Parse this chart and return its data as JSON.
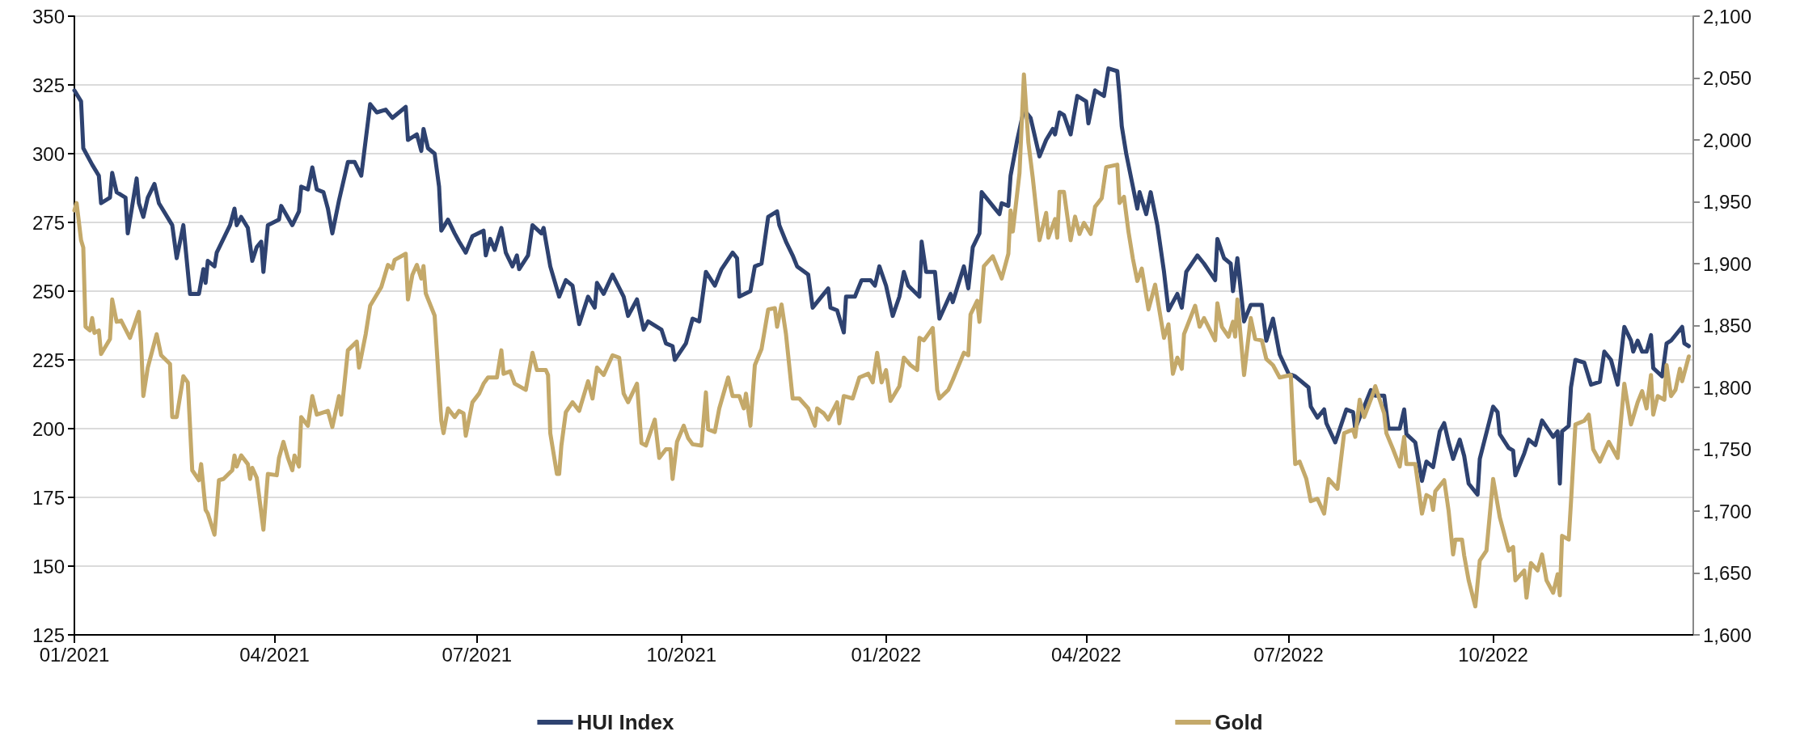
{
  "chart_data": {
    "type": "line",
    "xlim": [
      "2021-01-01",
      "2022-12-30"
    ],
    "xticks": [
      {
        "value": "2021-01-01",
        "label": "01/2021"
      },
      {
        "value": "2021-04-01",
        "label": "04/2021"
      },
      {
        "value": "2021-07-01",
        "label": "07/2021"
      },
      {
        "value": "2021-10-01",
        "label": "10/2021"
      },
      {
        "value": "2022-01-01",
        "label": "01/2022"
      },
      {
        "value": "2022-04-01",
        "label": "04/2022"
      },
      {
        "value": "2022-07-01",
        "label": "07/2022"
      },
      {
        "value": "2022-10-01",
        "label": "10/2022"
      }
    ],
    "ylim": [
      125,
      350
    ],
    "yticks": [
      125,
      150,
      175,
      200,
      225,
      250,
      275,
      300,
      325,
      350
    ],
    "y2lim": [
      1600,
      2100
    ],
    "y2ticks": [
      {
        "value": 1600,
        "label": "1,600"
      },
      {
        "value": 1650,
        "label": "1,650"
      },
      {
        "value": 1700,
        "label": "1,700"
      },
      {
        "value": 1750,
        "label": "1,750"
      },
      {
        "value": 1800,
        "label": "1,800"
      },
      {
        "value": 1850,
        "label": "1,850"
      },
      {
        "value": 1900,
        "label": "1,900"
      },
      {
        "value": 1950,
        "label": "1,950"
      },
      {
        "value": 2000,
        "label": "2,000"
      },
      {
        "value": 2050,
        "label": "2,050"
      },
      {
        "value": 2100,
        "label": "2,100"
      }
    ],
    "grid": "y",
    "legend": "bottom",
    "marker": "none",
    "line_style": "solid",
    "series": [
      {
        "name": "HUI Index",
        "color": "#2e4270",
        "axis": "y",
        "x": [
          "2021-01-01",
          "2021-01-04",
          "2021-01-05",
          "2021-01-09",
          "2021-01-12",
          "2021-01-13",
          "2021-01-17",
          "2021-01-18",
          "2021-01-20",
          "2021-01-24",
          "2021-01-25",
          "2021-01-29",
          "2021-01-30",
          "2021-02-01",
          "2021-02-03",
          "2021-02-06",
          "2021-02-08",
          "2021-02-14",
          "2021-02-16",
          "2021-02-19",
          "2021-02-22",
          "2021-02-26",
          "2021-02-28",
          "2021-03-01",
          "2021-03-02",
          "2021-03-05",
          "2021-03-06",
          "2021-03-09",
          "2021-03-12",
          "2021-03-14",
          "2021-03-15",
          "2021-03-17",
          "2021-03-20",
          "2021-03-22",
          "2021-03-24",
          "2021-03-26",
          "2021-03-27",
          "2021-03-29",
          "2021-04-03",
          "2021-04-04",
          "2021-04-09",
          "2021-04-12",
          "2021-04-13",
          "2021-04-16",
          "2021-04-18",
          "2021-04-20",
          "2021-04-23",
          "2021-04-25",
          "2021-04-27",
          "2021-04-30",
          "2021-05-04",
          "2021-05-07",
          "2021-05-10",
          "2021-05-14",
          "2021-05-17",
          "2021-05-21",
          "2021-05-24",
          "2021-05-30",
          "2021-05-31",
          "2021-06-04",
          "2021-06-06",
          "2021-06-07",
          "2021-06-09",
          "2021-06-12",
          "2021-06-14",
          "2021-06-15",
          "2021-06-18",
          "2021-06-21",
          "2021-06-23",
          "2021-06-26",
          "2021-06-29",
          "2021-07-04",
          "2021-07-05",
          "2021-07-07",
          "2021-07-09",
          "2021-07-12",
          "2021-07-14",
          "2021-07-17",
          "2021-07-19",
          "2021-07-20",
          "2021-07-24",
          "2021-07-26",
          "2021-07-30",
          "2021-07-31",
          "2021-08-03",
          "2021-08-07",
          "2021-08-10",
          "2021-08-13",
          "2021-08-16",
          "2021-08-20",
          "2021-08-23",
          "2021-08-24",
          "2021-08-27",
          "2021-08-31",
          "2021-09-05",
          "2021-09-07",
          "2021-09-11",
          "2021-09-14",
          "2021-09-16",
          "2021-09-22",
          "2021-09-24",
          "2021-09-27",
          "2021-09-28",
          "2021-10-03",
          "2021-10-06",
          "2021-10-09",
          "2021-10-12",
          "2021-10-16",
          "2021-10-19",
          "2021-10-24",
          "2021-10-26",
          "2021-10-27",
          "2021-11-01",
          "2021-11-03",
          "2021-11-06",
          "2021-11-09",
          "2021-11-13",
          "2021-11-14",
          "2021-11-17",
          "2021-11-20",
          "2021-11-22",
          "2021-11-27",
          "2021-11-29",
          "2021-12-06",
          "2021-12-07",
          "2021-12-10",
          "2021-12-13",
          "2021-12-14",
          "2021-12-18",
          "2021-12-21",
          "2021-12-25",
          "2021-12-27",
          "2021-12-29",
          "2022-01-01",
          "2022-01-04",
          "2022-01-07",
          "2022-01-09",
          "2022-01-11",
          "2022-01-16",
          "2022-01-17",
          "2022-01-19",
          "2022-01-23",
          "2022-01-25",
          "2022-01-30",
          "2022-01-31",
          "2022-02-05",
          "2022-02-07",
          "2022-02-09",
          "2022-02-12",
          "2022-02-13",
          "2022-02-18",
          "2022-02-21",
          "2022-02-22",
          "2022-02-25",
          "2022-02-26",
          "2022-03-01",
          "2022-03-04",
          "2022-03-07",
          "2022-03-11",
          "2022-03-14",
          "2022-03-17",
          "2022-03-18",
          "2022-03-20",
          "2022-03-22",
          "2022-03-25",
          "2022-03-28",
          "2022-04-01",
          "2022-04-02",
          "2022-04-05",
          "2022-04-09",
          "2022-04-11",
          "2022-04-15",
          "2022-04-16",
          "2022-04-17",
          "2022-04-19",
          "2022-04-22",
          "2022-04-24",
          "2022-04-25",
          "2022-04-28",
          "2022-04-30",
          "2022-05-03",
          "2022-05-06",
          "2022-05-08",
          "2022-05-12",
          "2022-05-14",
          "2022-05-16",
          "2022-05-21",
          "2022-05-24",
          "2022-05-29",
          "2022-05-30",
          "2022-06-02",
          "2022-06-05",
          "2022-06-06",
          "2022-06-08",
          "2022-06-11",
          "2022-06-14",
          "2022-06-19",
          "2022-06-21",
          "2022-06-24",
          "2022-06-27",
          "2022-07-01",
          "2022-07-04",
          "2022-07-10",
          "2022-07-11",
          "2022-07-14",
          "2022-07-17",
          "2022-07-18",
          "2022-07-22",
          "2022-07-27",
          "2022-07-30",
          "2022-07-31",
          "2022-08-02",
          "2022-08-07",
          "2022-08-09",
          "2022-08-13",
          "2022-08-15",
          "2022-08-17",
          "2022-08-20",
          "2022-08-22",
          "2022-08-23",
          "2022-08-27",
          "2022-08-30",
          "2022-09-01",
          "2022-09-04",
          "2022-09-07",
          "2022-09-09",
          "2022-09-11",
          "2022-09-13",
          "2022-09-16",
          "2022-09-18",
          "2022-09-20",
          "2022-09-24",
          "2022-09-25",
          "2022-10-01",
          "2022-10-03",
          "2022-10-04",
          "2022-10-08",
          "2022-10-10",
          "2022-10-11",
          "2022-10-15",
          "2022-10-17",
          "2022-10-20",
          "2022-10-23",
          "2022-10-28",
          "2022-10-30",
          "2022-10-31",
          "2022-11-01",
          "2022-11-04",
          "2022-11-05",
          "2022-11-07",
          "2022-11-11",
          "2022-11-14",
          "2022-11-18",
          "2022-11-20",
          "2022-11-23",
          "2022-11-26",
          "2022-11-29",
          "2022-12-02",
          "2022-12-03",
          "2022-12-05",
          "2022-12-07",
          "2022-12-09",
          "2022-12-11",
          "2022-12-12",
          "2022-12-16",
          "2022-12-18",
          "2022-12-20",
          "2022-12-25",
          "2022-12-26",
          "2022-12-28"
        ],
        "values": [
          323,
          319,
          302,
          296,
          292,
          282,
          284,
          293,
          286,
          284,
          271,
          291,
          282,
          277,
          284,
          289,
          282,
          274,
          262,
          274,
          249,
          249,
          258,
          253,
          261,
          259,
          264,
          269,
          274,
          280,
          274,
          277,
          273,
          261,
          266,
          268,
          257,
          274,
          276,
          281,
          274,
          279,
          288,
          287,
          295,
          287,
          286,
          280,
          271,
          283,
          297,
          297,
          292,
          318,
          315,
          316,
          313,
          317,
          305,
          307,
          301,
          309,
          302,
          300,
          288,
          272,
          276,
          271,
          268,
          264,
          270,
          272,
          263,
          269,
          265,
          273,
          264,
          259,
          263,
          258,
          263,
          274,
          271,
          273,
          259,
          248,
          254,
          252,
          238,
          248,
          244,
          253,
          249,
          256,
          248,
          241,
          247,
          236,
          239,
          236,
          231,
          230,
          225,
          231,
          240,
          239,
          257,
          252,
          258,
          264,
          262,
          248,
          250,
          259,
          260,
          277,
          279,
          274,
          268,
          263,
          259,
          256,
          244,
          251,
          244,
          243,
          235,
          248,
          248,
          254,
          254,
          252,
          259,
          252,
          241,
          248,
          257,
          252,
          248,
          268,
          257,
          257,
          240,
          249,
          246,
          259,
          251,
          266,
          271,
          286,
          281,
          278,
          282,
          281,
          292,
          305,
          316,
          313,
          299,
          305,
          309,
          307,
          315,
          314,
          307,
          321,
          319,
          311,
          323,
          321,
          331,
          330,
          321,
          310,
          300,
          288,
          280,
          286,
          278,
          286,
          274,
          257,
          243,
          249,
          244,
          257,
          263,
          260,
          254,
          269,
          262,
          260,
          250,
          262,
          239,
          245,
          245,
          232,
          240,
          227,
          220,
          219,
          215,
          208,
          204,
          207,
          202,
          195,
          207,
          206,
          200,
          204,
          214,
          212,
          212,
          200,
          200,
          200,
          207,
          198,
          195,
          181,
          188,
          186,
          199,
          202,
          195,
          189,
          196,
          190,
          180,
          176,
          189,
          208,
          206,
          198,
          193,
          192,
          183,
          191,
          196,
          194,
          203,
          197,
          199,
          180,
          199,
          201,
          215,
          225,
          224,
          216,
          217,
          228,
          225,
          216,
          237,
          232,
          228,
          232,
          228,
          228,
          234,
          222,
          219,
          231,
          232,
          237,
          231,
          230
        ]
      },
      {
        "name": "Gold",
        "color": "#c4a96a",
        "axis": "y2",
        "x": [
          "2021-01-01",
          "2021-01-02",
          "2021-01-04",
          "2021-01-05",
          "2021-01-06",
          "2021-01-08",
          "2021-01-09",
          "2021-01-10",
          "2021-01-12",
          "2021-01-13",
          "2021-01-17",
          "2021-01-18",
          "2021-01-20",
          "2021-01-22",
          "2021-01-26",
          "2021-01-30",
          "2021-01-31",
          "2021-02-01",
          "2021-02-03",
          "2021-02-07",
          "2021-02-09",
          "2021-02-13",
          "2021-02-14",
          "2021-02-16",
          "2021-02-19",
          "2021-02-21",
          "2021-02-23",
          "2021-02-26",
          "2021-02-27",
          "2021-03-01",
          "2021-03-02",
          "2021-03-05",
          "2021-03-07",
          "2021-03-09",
          "2021-03-13",
          "2021-03-14",
          "2021-03-15",
          "2021-03-17",
          "2021-03-20",
          "2021-03-21",
          "2021-03-22",
          "2021-03-24",
          "2021-03-27",
          "2021-03-29",
          "2021-04-02",
          "2021-04-03",
          "2021-04-05",
          "2021-04-07",
          "2021-04-09",
          "2021-04-10",
          "2021-04-12",
          "2021-04-13",
          "2021-04-16",
          "2021-04-18",
          "2021-04-20",
          "2021-04-25",
          "2021-04-27",
          "2021-04-30",
          "2021-05-01",
          "2021-05-04",
          "2021-05-08",
          "2021-05-09",
          "2021-05-12",
          "2021-05-14",
          "2021-05-19",
          "2021-05-22",
          "2021-05-24",
          "2021-05-25",
          "2021-05-30",
          "2021-05-31",
          "2021-06-02",
          "2021-06-04",
          "2021-06-06",
          "2021-06-07",
          "2021-06-08",
          "2021-06-12",
          "2021-06-15",
          "2021-06-16",
          "2021-06-18",
          "2021-06-21",
          "2021-06-23",
          "2021-06-25",
          "2021-06-26",
          "2021-06-29",
          "2021-07-02",
          "2021-07-04",
          "2021-07-06",
          "2021-07-10",
          "2021-07-12",
          "2021-07-13",
          "2021-07-16",
          "2021-07-18",
          "2021-07-23",
          "2021-07-26",
          "2021-07-28",
          "2021-08-01",
          "2021-08-02",
          "2021-08-03",
          "2021-08-06",
          "2021-08-07",
          "2021-08-08",
          "2021-08-10",
          "2021-08-13",
          "2021-08-16",
          "2021-08-20",
          "2021-08-22",
          "2021-08-24",
          "2021-08-27",
          "2021-08-31",
          "2021-09-03",
          "2021-09-05",
          "2021-09-07",
          "2021-09-11",
          "2021-09-13",
          "2021-09-15",
          "2021-09-19",
          "2021-09-21",
          "2021-09-24",
          "2021-09-26",
          "2021-09-27",
          "2021-09-29",
          "2021-10-02",
          "2021-10-04",
          "2021-10-06",
          "2021-10-10",
          "2021-10-12",
          "2021-10-13",
          "2021-10-16",
          "2021-10-18",
          "2021-10-22",
          "2021-10-24",
          "2021-10-27",
          "2021-10-29",
          "2021-10-30",
          "2021-11-01",
          "2021-11-03",
          "2021-11-06",
          "2021-11-09",
          "2021-11-12",
          "2021-11-13",
          "2021-11-15",
          "2021-11-17",
          "2021-11-20",
          "2021-11-23",
          "2021-11-27",
          "2021-11-30",
          "2021-12-01",
          "2021-12-04",
          "2021-12-06",
          "2021-12-10",
          "2021-12-11",
          "2021-12-13",
          "2021-12-17",
          "2021-12-20",
          "2021-12-24",
          "2021-12-26",
          "2021-12-28",
          "2021-12-30",
          "2022-01-01",
          "2022-01-03",
          "2022-01-07",
          "2022-01-09",
          "2022-01-12",
          "2022-01-15",
          "2022-01-16",
          "2022-01-18",
          "2022-01-22",
          "2022-01-24",
          "2022-01-25",
          "2022-01-29",
          "2022-01-31",
          "2022-02-05",
          "2022-02-07",
          "2022-02-08",
          "2022-02-11",
          "2022-02-12",
          "2022-02-14",
          "2022-02-18",
          "2022-02-22",
          "2022-02-25",
          "2022-02-26",
          "2022-02-27",
          "2022-03-02",
          "2022-03-04",
          "2022-03-06",
          "2022-03-08",
          "2022-03-11",
          "2022-03-14",
          "2022-03-15",
          "2022-03-18",
          "2022-03-19",
          "2022-03-20",
          "2022-03-22",
          "2022-03-25",
          "2022-03-27",
          "2022-03-29",
          "2022-03-31",
          "2022-04-03",
          "2022-04-05",
          "2022-04-08",
          "2022-04-10",
          "2022-04-15",
          "2022-04-16",
          "2022-04-18",
          "2022-04-20",
          "2022-04-22",
          "2022-04-24",
          "2022-04-26",
          "2022-04-29",
          "2022-05-02",
          "2022-05-06",
          "2022-05-08",
          "2022-05-10",
          "2022-05-12",
          "2022-05-14",
          "2022-05-15",
          "2022-05-20",
          "2022-05-22",
          "2022-05-24",
          "2022-05-29",
          "2022-05-30",
          "2022-06-01",
          "2022-06-04",
          "2022-06-06",
          "2022-06-07",
          "2022-06-08",
          "2022-06-11",
          "2022-06-14",
          "2022-06-16",
          "2022-06-19",
          "2022-06-21",
          "2022-06-24",
          "2022-06-27",
          "2022-07-02",
          "2022-07-04",
          "2022-07-06",
          "2022-07-09",
          "2022-07-11",
          "2022-07-14",
          "2022-07-17",
          "2022-07-19",
          "2022-07-23",
          "2022-07-26",
          "2022-07-30",
          "2022-07-31",
          "2022-08-02",
          "2022-08-04",
          "2022-08-08",
          "2022-08-09",
          "2022-08-13",
          "2022-08-14",
          "2022-08-17",
          "2022-08-20",
          "2022-08-22",
          "2022-08-23",
          "2022-08-27",
          "2022-08-30",
          "2022-09-01",
          "2022-09-03",
          "2022-09-04",
          "2022-09-05",
          "2022-09-09",
          "2022-09-11",
          "2022-09-13",
          "2022-09-14",
          "2022-09-17",
          "2022-09-18",
          "2022-09-20",
          "2022-09-23",
          "2022-09-25",
          "2022-09-28",
          "2022-10-01",
          "2022-10-04",
          "2022-10-08",
          "2022-10-10",
          "2022-10-11",
          "2022-10-15",
          "2022-10-16",
          "2022-10-18",
          "2022-10-21",
          "2022-10-23",
          "2022-10-25",
          "2022-10-28",
          "2022-10-30",
          "2022-10-31",
          "2022-11-01",
          "2022-11-04",
          "2022-11-05",
          "2022-11-07",
          "2022-11-11",
          "2022-11-13",
          "2022-11-15",
          "2022-11-18",
          "2022-11-22",
          "2022-11-26",
          "2022-11-29",
          "2022-12-02",
          "2022-12-05",
          "2022-12-07",
          "2022-12-09",
          "2022-12-11",
          "2022-12-12",
          "2022-12-14",
          "2022-12-17",
          "2022-12-18",
          "2022-12-20",
          "2022-12-22",
          "2022-12-24",
          "2022-12-25",
          "2022-12-28"
        ],
        "values": [
          1943,
          1949,
          1919,
          1913,
          1849,
          1846,
          1856,
          1844,
          1846,
          1827,
          1839,
          1871,
          1853,
          1854,
          1840,
          1861,
          1836,
          1793,
          1816,
          1843,
          1826,
          1819,
          1776,
          1776,
          1809,
          1804,
          1733,
          1725,
          1738,
          1701,
          1698,
          1681,
          1725,
          1726,
          1733,
          1745,
          1736,
          1745,
          1738,
          1726,
          1735,
          1727,
          1685,
          1730,
          1729,
          1743,
          1756,
          1743,
          1733,
          1745,
          1736,
          1776,
          1769,
          1793,
          1778,
          1781,
          1768,
          1793,
          1778,
          1830,
          1837,
          1816,
          1843,
          1866,
          1881,
          1899,
          1896,
          1903,
          1908,
          1871,
          1891,
          1899,
          1888,
          1898,
          1876,
          1858,
          1773,
          1763,
          1783,
          1776,
          1781,
          1779,
          1761,
          1788,
          1795,
          1803,
          1808,
          1808,
          1830,
          1811,
          1813,
          1803,
          1798,
          1828,
          1814,
          1814,
          1810,
          1763,
          1730,
          1730,
          1753,
          1780,
          1788,
          1781,
          1805,
          1791,
          1816,
          1810,
          1826,
          1824,
          1795,
          1788,
          1803,
          1755,
          1753,
          1774,
          1743,
          1750,
          1750,
          1726,
          1756,
          1769,
          1759,
          1754,
          1753,
          1796,
          1766,
          1764,
          1783,
          1808,
          1793,
          1793,
          1783,
          1795,
          1769,
          1818,
          1831,
          1863,
          1864,
          1849,
          1867,
          1843,
          1791,
          1791,
          1783,
          1769,
          1783,
          1779,
          1774,
          1788,
          1771,
          1793,
          1791,
          1808,
          1811,
          1804,
          1828,
          1804,
          1814,
          1789,
          1801,
          1824,
          1818,
          1814,
          1840,
          1838,
          1848,
          1798,
          1791,
          1798,
          1806,
          1828,
          1826,
          1859,
          1870,
          1853,
          1898,
          1906,
          1888,
          1908,
          1943,
          1926,
          1973,
          2053,
          1998,
          1969,
          1919,
          1941,
          1921,
          1936,
          1921,
          1958,
          1958,
          1919,
          1938,
          1924,
          1933,
          1924,
          1946,
          1953,
          1978,
          1980,
          1949,
          1954,
          1926,
          1904,
          1886,
          1896,
          1863,
          1883,
          1840,
          1851,
          1811,
          1824,
          1815,
          1843,
          1866,
          1849,
          1856,
          1838,
          1868,
          1849,
          1841,
          1853,
          1841,
          1871,
          1810,
          1856,
          1839,
          1838,
          1823,
          1818,
          1808,
          1810,
          1738,
          1740,
          1726,
          1708,
          1710,
          1698,
          1726,
          1718,
          1763,
          1766,
          1760,
          1790,
          1776,
          1795,
          1801,
          1779,
          1763,
          1750,
          1736,
          1760,
          1738,
          1738,
          1698,
          1713,
          1711,
          1701,
          1716,
          1725,
          1700,
          1665,
          1677,
          1677,
          1664,
          1644,
          1623,
          1660,
          1668,
          1726,
          1695,
          1668,
          1671,
          1644,
          1652,
          1630,
          1658,
          1652,
          1665,
          1644,
          1634,
          1649,
          1632,
          1680,
          1677,
          1707,
          1770,
          1773,
          1778,
          1750,
          1740,
          1756,
          1743,
          1803,
          1770,
          1788,
          1797,
          1783,
          1810,
          1778,
          1793,
          1790,
          1818,
          1793,
          1798,
          1815,
          1805,
          1825
        ]
      }
    ]
  }
}
